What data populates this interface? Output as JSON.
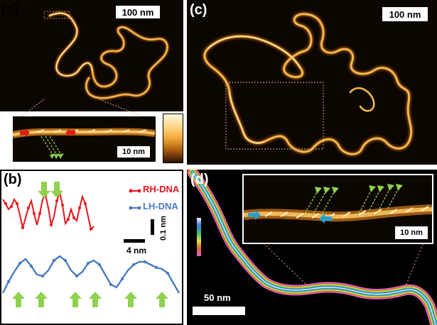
{
  "panels": {
    "a": {
      "label": "(a)",
      "scale_main": "100 nm",
      "scale_inset": "10 nm"
    },
    "b": {
      "label": "(b)",
      "legend": [
        {
          "name": "RH-DNA",
          "color": "#e8151b"
        },
        {
          "name": "LH-DNA",
          "color": "#4a7cc0"
        }
      ],
      "scalebar_y": "0.1 nm",
      "scalebar_x": "4 nm",
      "arrow_color": "#8fd14f"
    },
    "c": {
      "label": "(c)",
      "scale_main": "100 nm"
    },
    "d": {
      "label": "(d)",
      "scale_main": "50 nm",
      "scale_inset": "10 nm"
    }
  },
  "colors": {
    "afm_background": "#0c0601",
    "dna_strand": "#f0b24a",
    "dna_highlight": "#fff2c4",
    "arrow_red": "#e01a1a",
    "arrow_green": "#8fd14f",
    "arrow_blue": "#2aa0c8"
  }
}
